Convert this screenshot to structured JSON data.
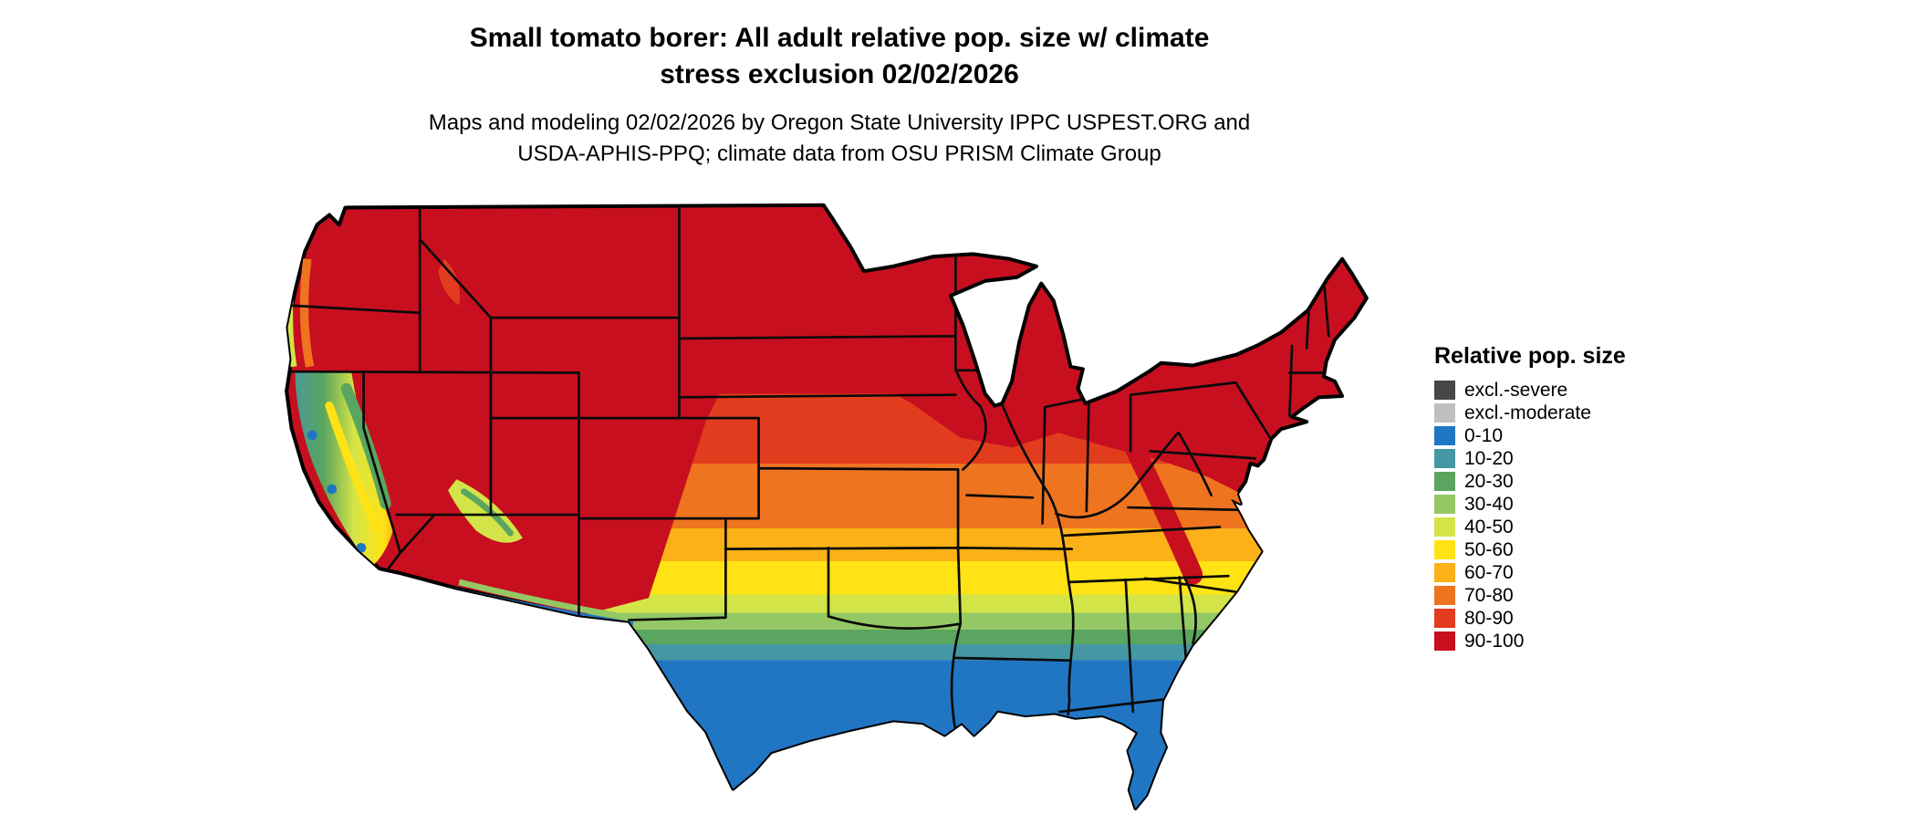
{
  "title": {
    "line1": "Small tomato borer: All adult relative pop. size w/ climate",
    "line2": "stress exclusion 02/02/2026"
  },
  "subtitle": {
    "line1": "Maps and modeling 02/02/2026 by Oregon State University IPPC USPEST.ORG and",
    "line2": "USDA-APHIS-PPQ; climate data from OSU PRISM Climate Group"
  },
  "legend": {
    "title": "Relative pop. size",
    "entries": [
      {
        "key": "excl.-severe",
        "label": "excl.-severe",
        "color": "#474747"
      },
      {
        "key": "excl.-moderate",
        "label": "excl.-moderate",
        "color": "#bfbfbf"
      },
      {
        "key": "0-10",
        "label": "0-10",
        "color": "#2176c4"
      },
      {
        "key": "10-20",
        "label": "10-20",
        "color": "#4697a4"
      },
      {
        "key": "20-30",
        "label": "20-30",
        "color": "#5aa55f"
      },
      {
        "key": "30-40",
        "label": "30-40",
        "color": "#93c865"
      },
      {
        "key": "40-50",
        "label": "40-50",
        "color": "#d3e448"
      },
      {
        "key": "50-60",
        "label": "50-60",
        "color": "#ffe315"
      },
      {
        "key": "60-70",
        "label": "60-70",
        "color": "#fbb117"
      },
      {
        "key": "70-80",
        "label": "70-80",
        "color": "#ee7420"
      },
      {
        "key": "80-90",
        "label": "80-90",
        "color": "#e13c1e"
      },
      {
        "key": "90-100",
        "label": "90-100",
        "color": "#c70f1f"
      }
    ]
  },
  "map": {
    "region": "Contiguous United States",
    "outline_color": "#000000",
    "background_color": "#ffffff",
    "pattern": [
      {
        "area": "Northern, western and northeastern states",
        "value": "90-100"
      },
      {
        "area": "Central Plains and Midwest (Nebraska, Iowa, Kansas, Missouri, Ohio Valley)",
        "value": "70-90"
      },
      {
        "area": "Southern Plains and mid-South (Oklahoma, Arkansas, Tennessee, Virginia coastal plain)",
        "value": "50-70"
      },
      {
        "area": "Deep South band (central Texas, Georgia, inland Gulf states)",
        "value": "20-50"
      },
      {
        "area": "South Texas, Gulf Coast and Florida",
        "value": "0-20"
      },
      {
        "area": "California coast, Central Valley and Arizona mountains",
        "value": "10-60"
      },
      {
        "area": "US-Mexico border strip in Arizona / New Mexico",
        "value": "0-30"
      }
    ]
  }
}
